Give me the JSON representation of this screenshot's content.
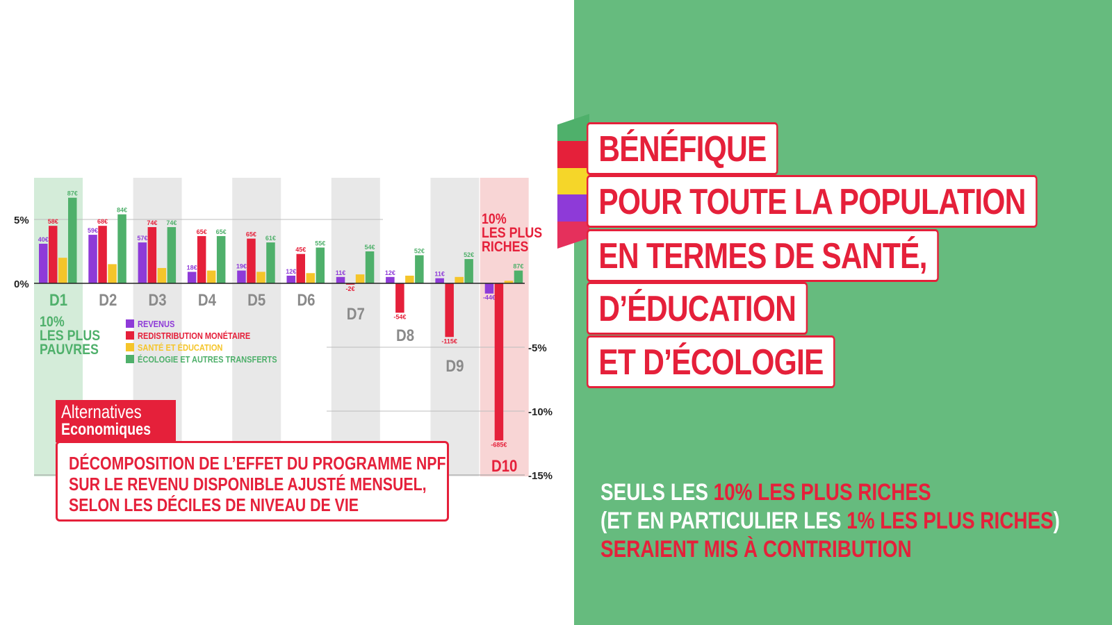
{
  "headline": {
    "lines": [
      "BÉNÉFIQUE",
      "POUR TOUTE LA POPULATION",
      "EN TERMES DE SANTÉ,",
      "D’ÉDUCATION",
      "ET D’ÉCOLOGIE"
    ]
  },
  "flag_colors": [
    "#4fb06b",
    "#e5203a",
    "#f5d629",
    "#8e3ad8",
    "#e5305c"
  ],
  "tagline": {
    "line1_a": "SEULS LES ",
    "line1_b": "10% LES PLUS RICHES",
    "line2_a": "(ET EN PARTICULIER LES ",
    "line2_b": "1% LES PLUS RICHES",
    "line2_c": ")",
    "line3": "SERAIENT MIS À CONTRIBUTION"
  },
  "source": {
    "name_line1": "Alternatives",
    "name_line2": "Economiques"
  },
  "caption": [
    "DÉCOMPOSITION DE L’EFFET DU PROGRAMME NPF",
    "SUR LE REVENU DISPONIBLE AJUSTÉ MENSUEL,",
    "SELON LES DÉCILES DE NIVEAU DE VIE"
  ],
  "colors": {
    "revenus": "#8e3ad8",
    "redistribution": "#e5203a",
    "sante": "#f5c52a",
    "ecologie": "#4fb06b",
    "background_green": "#66bb7e",
    "band_gray": "#e8e8e8",
    "band_green": "#d4ecd9",
    "band_red": "#f8d5d5"
  },
  "chart_data": {
    "type": "bar",
    "categories": [
      "D1",
      "D2",
      "D3",
      "D4",
      "D5",
      "D6",
      "D7",
      "D8",
      "D9",
      "D10"
    ],
    "y_ticks": [
      "5%",
      "0%",
      "-5%",
      "-10%",
      "-15%"
    ],
    "ylim": [
      -15,
      8
    ],
    "legend_position": "center-left",
    "series": [
      {
        "name": "REVENUS",
        "values": [
          3.1,
          3.8,
          3.2,
          0.9,
          1.0,
          0.6,
          0.5,
          0.5,
          0.4,
          -0.8
        ],
        "labels": [
          "40€",
          "59€",
          "57€",
          "18€",
          "19€",
          "12€",
          "11€",
          "12€",
          "11€",
          "-44€"
        ]
      },
      {
        "name": "REDISTRIBUTION MONÉTAIRE",
        "values": [
          4.5,
          4.5,
          4.4,
          3.7,
          3.5,
          2.3,
          -0.1,
          -2.3,
          -4.2,
          -12.3
        ],
        "labels": [
          "58€",
          "68€",
          "74€",
          "65€",
          "65€",
          "45€",
          "-2€",
          "-54€",
          "-115€",
          "-685€"
        ]
      },
      {
        "name": "SANTÉ ET ÉDUCATION",
        "values": [
          2.0,
          1.5,
          1.2,
          1.0,
          0.9,
          0.8,
          0.7,
          0.6,
          0.5,
          0.2
        ],
        "labels": [
          "",
          "",
          "",
          "",
          "",
          "",
          "",
          "",
          "",
          ""
        ]
      },
      {
        "name": "ÉCOLOGIE ET AUTRES TRANSFERTS",
        "values": [
          6.7,
          5.4,
          4.4,
          3.7,
          3.2,
          2.8,
          2.5,
          2.2,
          1.9,
          1.0
        ],
        "labels": [
          "87€",
          "84€",
          "74€",
          "65€",
          "61€",
          "55€",
          "54€",
          "52€",
          "52€",
          "87€"
        ]
      }
    ],
    "annotations": {
      "poorest": [
        "10%",
        "LES PLUS",
        "PAUVRES"
      ],
      "richest": [
        "10%",
        "LES PLUS",
        "RICHES"
      ]
    }
  }
}
